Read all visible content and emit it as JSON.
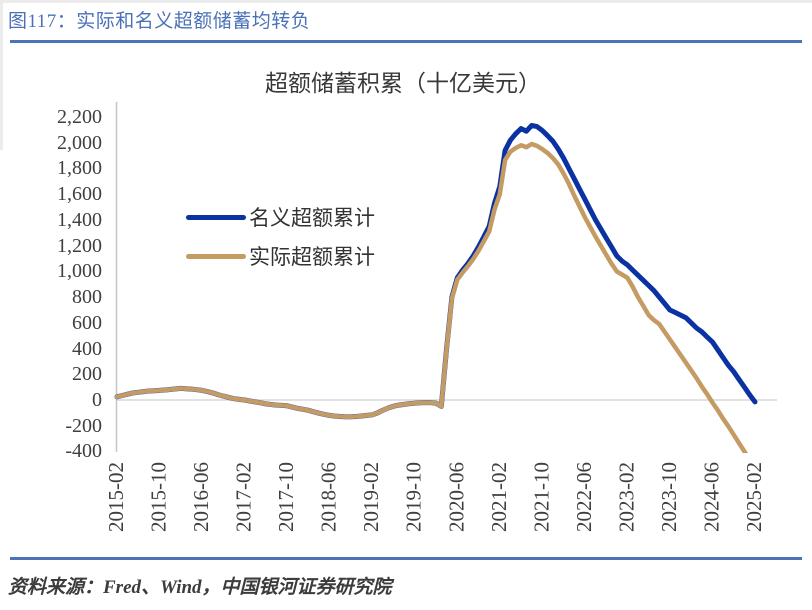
{
  "header": {
    "title": "图117：实际和名义超额储蓄均转负"
  },
  "footer": {
    "source": "资料来源：Fred、Wind，中国银河证券研究院"
  },
  "colors": {
    "accent_blue": "#4c73b8",
    "nominal_line": "#0a32a3",
    "real_line": "#c59b64",
    "axis_gray": "#c6c6c6",
    "zero_gridline_gray": "#d8d8d8",
    "text_dark": "#3f3f3f"
  },
  "chart_data": {
    "type": "line",
    "title": "超额储蓄积累（十亿美元）",
    "xlabel": "",
    "ylabel": "",
    "x_frequency": "monthly",
    "x_start": "2015-02",
    "x_end": "2025-02",
    "n_points": 121,
    "x_tick_labels": [
      "2015-02",
      "2015-10",
      "2016-06",
      "2017-02",
      "2017-10",
      "2018-06",
      "2019-02",
      "2019-10",
      "2020-06",
      "2021-02",
      "2021-10",
      "2022-06",
      "2023-02",
      "2023-10",
      "2024-06",
      "2025-02"
    ],
    "x_tick_step_months": 8,
    "y_ticks": [
      2200,
      2000,
      1800,
      1600,
      1400,
      1200,
      1000,
      800,
      600,
      400,
      200,
      0,
      -200,
      -400
    ],
    "ylim": [
      -400,
      2200
    ],
    "grid": "zero-line-only",
    "legend_position": "inside-upper-left",
    "series": [
      {
        "name": "名义超额累计",
        "color": "#0a32a3",
        "values": [
          25,
          35,
          45,
          55,
          60,
          65,
          70,
          72,
          75,
          78,
          82,
          86,
          90,
          88,
          85,
          80,
          75,
          65,
          55,
          42,
          30,
          20,
          10,
          5,
          0,
          -8,
          -15,
          -22,
          -30,
          -35,
          -40,
          -42,
          -45,
          -55,
          -65,
          -72,
          -80,
          -92,
          -103,
          -112,
          -120,
          -125,
          -128,
          -130,
          -130,
          -128,
          -124,
          -120,
          -115,
          -100,
          -80,
          -62,
          -48,
          -40,
          -34,
          -28,
          -25,
          -22,
          -20,
          -20,
          -25,
          -50,
          400,
          800,
          950,
          1010,
          1060,
          1120,
          1190,
          1270,
          1350,
          1530,
          1660,
          1940,
          2020,
          2070,
          2110,
          2090,
          2135,
          2125,
          2095,
          2055,
          2010,
          1950,
          1880,
          1800,
          1720,
          1640,
          1560,
          1480,
          1400,
          1330,
          1260,
          1190,
          1120,
          1080,
          1050,
          1010,
          970,
          930,
          890,
          850,
          800,
          750,
          700,
          680,
          660,
          640,
          600,
          560,
          530,
          490,
          450,
          390,
          330,
          270,
          220,
          160,
          100,
          40,
          -15
        ]
      },
      {
        "name": "实际超额累计",
        "color": "#c59b64",
        "values": [
          25,
          35,
          45,
          55,
          60,
          65,
          70,
          72,
          75,
          78,
          82,
          86,
          90,
          88,
          85,
          80,
          75,
          65,
          55,
          42,
          30,
          20,
          10,
          5,
          0,
          -8,
          -15,
          -22,
          -30,
          -35,
          -40,
          -42,
          -45,
          -55,
          -65,
          -72,
          -80,
          -92,
          -103,
          -112,
          -120,
          -125,
          -128,
          -130,
          -130,
          -128,
          -124,
          -120,
          -115,
          -100,
          -80,
          -62,
          -48,
          -40,
          -34,
          -28,
          -25,
          -22,
          -20,
          -20,
          -25,
          -50,
          395,
          790,
          935,
          990,
          1040,
          1095,
          1160,
          1235,
          1310,
          1480,
          1600,
          1865,
          1930,
          1960,
          1980,
          1965,
          1990,
          1975,
          1950,
          1920,
          1880,
          1830,
          1760,
          1680,
          1590,
          1505,
          1420,
          1345,
          1270,
          1200,
          1130,
          1060,
          1000,
          975,
          950,
          880,
          800,
          730,
          660,
          620,
          590,
          530,
          470,
          410,
          350,
          290,
          230,
          170,
          105,
          45,
          -20,
          -80,
          -145,
          -205,
          -270,
          -335,
          -400,
          -465,
          -530
        ]
      }
    ]
  }
}
